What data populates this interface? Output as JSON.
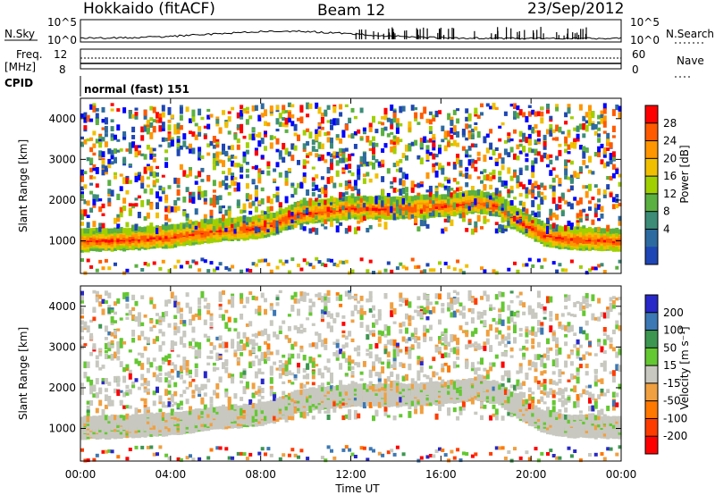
{
  "header": {
    "station": "Hokkaido (fitACF)",
    "beam": "Beam 12",
    "date": "23/Sep/2012"
  },
  "top_panels": {
    "nsky_label": "N.Sky",
    "nsearch_label": "N.Search",
    "nsky_ticks": [
      "10^5",
      "10^0"
    ],
    "nsearch_ticks": [
      "10^5",
      "10^0"
    ],
    "freq_label": "Freq.",
    "freq_unit": "[MHz]",
    "freq_ticks": [
      "12",
      "8"
    ],
    "nave_label": "Nave",
    "nave_ticks": [
      "60",
      "0"
    ],
    "cpid_label": "CPID",
    "cpid_text": "normal (fast) 151"
  },
  "chart_data": [
    {
      "type": "heatmap",
      "title": "",
      "xlabel": "",
      "ylabel": "Slant Range [km]",
      "x_ticks": [
        "00:00",
        "04:00",
        "08:00",
        "12:00",
        "16:00",
        "20:00",
        "00:00"
      ],
      "x_range_hours": [
        0,
        24
      ],
      "y_ticks": [
        1000,
        2000,
        3000,
        4000
      ],
      "ylim": [
        200,
        4500
      ],
      "colorbar": {
        "label": "Power [dB]",
        "ticks": [
          "28",
          "24",
          "20",
          "16",
          "12",
          "8",
          "4"
        ],
        "colors": [
          "#ff0000",
          "#ff5a00",
          "#ff9600",
          "#f0c000",
          "#a0d000",
          "#5ab040",
          "#3c8c78",
          "#2d6aa0",
          "#1e46b4",
          "#0000ff"
        ]
      },
      "echo_band": {
        "time_hours": [
          0,
          2,
          4,
          6,
          7.5,
          8.5,
          9.5,
          11,
          12,
          14,
          16,
          17.5,
          18.5,
          19.5,
          20.5,
          21.5,
          22.5,
          24
        ],
        "range_km": [
          1050,
          1080,
          1150,
          1300,
          1350,
          1450,
          1700,
          1800,
          1850,
          1850,
          1900,
          2000,
          1900,
          1500,
          1200,
          1100,
          1080,
          1050
        ]
      }
    },
    {
      "type": "heatmap",
      "title": "",
      "xlabel": "Time UT",
      "ylabel": "Slant Range [km]",
      "x_ticks": [
        "00:00",
        "04:00",
        "08:00",
        "12:00",
        "16:00",
        "20:00",
        "00:00"
      ],
      "x_range_hours": [
        0,
        24
      ],
      "y_ticks": [
        1000,
        2000,
        3000,
        4000
      ],
      "ylim": [
        200,
        4500
      ],
      "colorbar": {
        "label": "Velocity [m s⁻¹]",
        "ticks": [
          "200",
          "100",
          "50",
          "15",
          "-15",
          "-50",
          "-100",
          "-200"
        ],
        "colors": [
          "#2828c8",
          "#3c78b4",
          "#3c9650",
          "#64c832",
          "#c8c8c0",
          "#f0a040",
          "#ff7800",
          "#ff3c00",
          "#ff0000"
        ]
      }
    }
  ]
}
